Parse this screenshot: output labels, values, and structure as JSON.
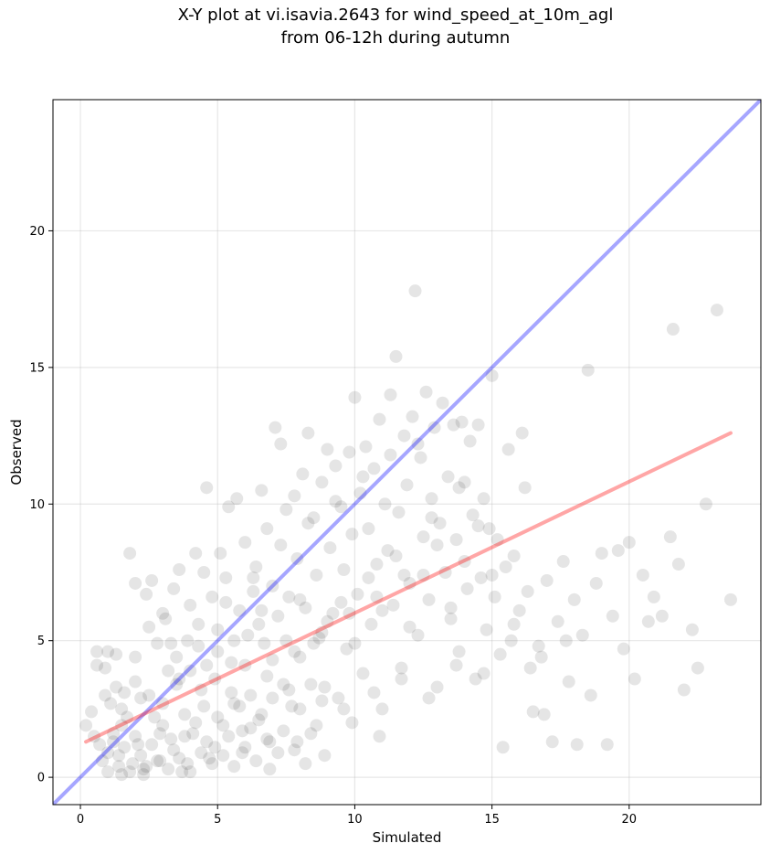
{
  "chart_data": {
    "type": "scatter",
    "title": "X-Y plot at vi.isavia.2643 for wind_speed_at_10m_agl",
    "subtitle": "from 06-12h during autumn",
    "xlabel": "Simulated",
    "ylabel": "Observed",
    "xlim": [
      -1,
      24.8
    ],
    "ylim": [
      -1,
      24.8
    ],
    "xticks": [
      0,
      5,
      10,
      15,
      20
    ],
    "yticks": [
      0,
      5,
      10,
      15,
      20
    ],
    "xtick_labels": [
      "0",
      "5",
      "10",
      "15",
      "20"
    ],
    "ytick_labels": [
      "0",
      "5",
      "10",
      "15",
      "20"
    ],
    "grid": true,
    "point_color": "#000000",
    "point_alpha": 0.1,
    "identity_line": {
      "x": [
        -1,
        24.8
      ],
      "y": [
        -1,
        24.8
      ],
      "color": "#0000ff",
      "alpha": 0.35
    },
    "regression_line": {
      "x": [
        0.2,
        23.7
      ],
      "y": [
        1.3,
        12.6
      ],
      "color": "#ff0000",
      "alpha": 0.35
    },
    "series": [
      {
        "points": [
          [
            0.2,
            1.9
          ],
          [
            0.4,
            2.4
          ],
          [
            0.5,
            1.5
          ],
          [
            0.6,
            4.1
          ],
          [
            0.6,
            4.6
          ],
          [
            0.7,
            1.2
          ],
          [
            0.8,
            0.6
          ],
          [
            0.9,
            3.0
          ],
          [
            0.9,
            4.0
          ],
          [
            1.0,
            4.6
          ],
          [
            1.0,
            0.2
          ],
          [
            1.1,
            2.7
          ],
          [
            1.2,
            1.6
          ],
          [
            1.3,
            3.3
          ],
          [
            1.3,
            4.5
          ],
          [
            1.4,
            0.8
          ],
          [
            1.5,
            1.9
          ],
          [
            1.5,
            0.1
          ],
          [
            1.6,
            3.1
          ],
          [
            1.7,
            2.2
          ],
          [
            1.8,
            8.2
          ],
          [
            1.9,
            0.5
          ],
          [
            2.0,
            7.1
          ],
          [
            2.0,
            4.4
          ],
          [
            2.1,
            1.2
          ],
          [
            2.2,
            2.9
          ],
          [
            2.3,
            0.3
          ],
          [
            2.4,
            6.7
          ],
          [
            2.5,
            5.5
          ],
          [
            2.6,
            7.2
          ],
          [
            2.7,
            2.2
          ],
          [
            2.8,
            4.9
          ],
          [
            2.9,
            0.6
          ],
          [
            3.0,
            6.0
          ],
          [
            3.1,
            5.8
          ],
          [
            3.2,
            3.9
          ],
          [
            3.3,
            1.4
          ],
          [
            3.4,
            6.9
          ],
          [
            3.5,
            4.4
          ],
          [
            3.6,
            7.6
          ],
          [
            3.7,
            0.2
          ],
          [
            3.8,
            2.3
          ],
          [
            3.9,
            5.0
          ],
          [
            4.0,
            6.3
          ],
          [
            4.1,
            1.6
          ],
          [
            4.2,
            8.2
          ],
          [
            4.3,
            4.8
          ],
          [
            4.4,
            3.2
          ],
          [
            4.5,
            7.5
          ],
          [
            4.6,
            10.6
          ],
          [
            4.7,
            0.7
          ],
          [
            4.8,
            6.6
          ],
          [
            4.9,
            3.6
          ],
          [
            5.0,
            5.4
          ],
          [
            5.1,
            8.2
          ],
          [
            5.2,
            1.9
          ],
          [
            5.3,
            7.3
          ],
          [
            5.4,
            9.9
          ],
          [
            5.5,
            4.2
          ],
          [
            5.6,
            2.7
          ],
          [
            5.7,
            10.2
          ],
          [
            5.8,
            6.1
          ],
          [
            5.9,
            0.9
          ],
          [
            6.0,
            8.6
          ],
          [
            6.1,
            5.2
          ],
          [
            6.2,
            3.0
          ],
          [
            6.3,
            6.8
          ],
          [
            6.4,
            7.7
          ],
          [
            6.5,
            2.1
          ],
          [
            6.6,
            10.5
          ],
          [
            6.7,
            4.9
          ],
          [
            6.8,
            9.1
          ],
          [
            6.9,
            1.3
          ],
          [
            7.0,
            7.0
          ],
          [
            7.1,
            12.8
          ],
          [
            7.2,
            5.9
          ],
          [
            7.3,
            12.2
          ],
          [
            7.4,
            3.4
          ],
          [
            7.5,
            9.8
          ],
          [
            7.6,
            6.6
          ],
          [
            7.7,
            2.6
          ],
          [
            7.8,
            10.3
          ],
          [
            7.9,
            8.0
          ],
          [
            8.0,
            4.4
          ],
          [
            8.1,
            11.1
          ],
          [
            8.2,
            6.2
          ],
          [
            8.3,
            12.6
          ],
          [
            8.4,
            1.6
          ],
          [
            8.5,
            9.5
          ],
          [
            8.6,
            7.4
          ],
          [
            8.7,
            5.1
          ],
          [
            8.8,
            10.8
          ],
          [
            8.9,
            3.3
          ],
          [
            9.0,
            12.0
          ],
          [
            9.1,
            8.4
          ],
          [
            9.2,
            6.0
          ],
          [
            9.3,
            11.4
          ],
          [
            9.4,
            2.9
          ],
          [
            9.5,
            9.9
          ],
          [
            9.6,
            7.6
          ],
          [
            9.7,
            4.7
          ],
          [
            9.8,
            11.9
          ],
          [
            9.9,
            8.9
          ],
          [
            10.0,
            13.9
          ],
          [
            10.1,
            6.7
          ],
          [
            10.2,
            10.4
          ],
          [
            10.3,
            3.8
          ],
          [
            10.4,
            12.1
          ],
          [
            10.5,
            9.1
          ],
          [
            10.6,
            5.6
          ],
          [
            10.7,
            11.3
          ],
          [
            10.8,
            7.8
          ],
          [
            10.9,
            13.1
          ],
          [
            11.0,
            2.5
          ],
          [
            11.1,
            10.0
          ],
          [
            11.2,
            8.3
          ],
          [
            11.3,
            14.0
          ],
          [
            11.4,
            6.3
          ],
          [
            11.5,
            15.4
          ],
          [
            11.6,
            9.7
          ],
          [
            11.7,
            4.0
          ],
          [
            11.8,
            12.5
          ],
          [
            11.9,
            10.7
          ],
          [
            12.0,
            7.1
          ],
          [
            12.1,
            13.2
          ],
          [
            12.2,
            17.8
          ],
          [
            12.3,
            5.2
          ],
          [
            12.4,
            11.7
          ],
          [
            12.5,
            8.8
          ],
          [
            12.6,
            14.1
          ],
          [
            12.7,
            6.5
          ],
          [
            12.8,
            10.2
          ],
          [
            12.9,
            12.8
          ],
          [
            13.0,
            3.3
          ],
          [
            13.1,
            9.3
          ],
          [
            13.2,
            13.7
          ],
          [
            13.3,
            7.5
          ],
          [
            13.4,
            11.0
          ],
          [
            13.5,
            5.8
          ],
          [
            13.6,
            12.9
          ],
          [
            13.7,
            8.7
          ],
          [
            13.8,
            4.6
          ],
          [
            13.9,
            13.0
          ],
          [
            14.0,
            10.8
          ],
          [
            14.1,
            6.9
          ],
          [
            14.2,
            12.3
          ],
          [
            14.3,
            9.6
          ],
          [
            14.4,
            3.6
          ],
          [
            14.5,
            12.9
          ],
          [
            14.6,
            7.3
          ],
          [
            14.7,
            10.2
          ],
          [
            14.8,
            5.4
          ],
          [
            14.9,
            9.1
          ],
          [
            15.0,
            14.7
          ],
          [
            15.1,
            6.6
          ],
          [
            15.2,
            8.7
          ],
          [
            15.3,
            4.5
          ],
          [
            15.4,
            1.1
          ],
          [
            15.5,
            7.7
          ],
          [
            15.6,
            12.0
          ],
          [
            15.7,
            5.0
          ],
          [
            15.8,
            8.1
          ],
          [
            16.0,
            6.1
          ],
          [
            16.1,
            12.6
          ],
          [
            16.2,
            10.6
          ],
          [
            16.4,
            4.0
          ],
          [
            16.5,
            2.4
          ],
          [
            16.7,
            4.8
          ],
          [
            16.9,
            2.3
          ],
          [
            17.0,
            7.2
          ],
          [
            17.2,
            1.3
          ],
          [
            17.4,
            5.7
          ],
          [
            17.6,
            7.9
          ],
          [
            17.8,
            3.5
          ],
          [
            18.0,
            6.5
          ],
          [
            18.1,
            1.2
          ],
          [
            18.3,
            5.2
          ],
          [
            18.5,
            14.9
          ],
          [
            18.6,
            3.0
          ],
          [
            18.8,
            7.1
          ],
          [
            19.0,
            8.2
          ],
          [
            19.2,
            1.2
          ],
          [
            19.4,
            5.9
          ],
          [
            19.6,
            8.3
          ],
          [
            19.8,
            4.7
          ],
          [
            20.0,
            8.6
          ],
          [
            20.2,
            3.6
          ],
          [
            20.5,
            7.4
          ],
          [
            20.7,
            5.7
          ],
          [
            20.9,
            6.6
          ],
          [
            21.2,
            5.9
          ],
          [
            21.5,
            8.8
          ],
          [
            21.6,
            16.4
          ],
          [
            21.8,
            7.8
          ],
          [
            22.0,
            3.2
          ],
          [
            22.3,
            5.4
          ],
          [
            22.5,
            4.0
          ],
          [
            22.8,
            10.0
          ],
          [
            23.2,
            17.1
          ],
          [
            23.7,
            6.5
          ],
          [
            1.0,
            0.9
          ],
          [
            1.2,
            1.3
          ],
          [
            1.4,
            0.4
          ],
          [
            1.6,
            1.1
          ],
          [
            1.8,
            0.2
          ],
          [
            2.0,
            1.5
          ],
          [
            2.2,
            0.8
          ],
          [
            2.4,
            0.4
          ],
          [
            2.6,
            1.2
          ],
          [
            2.8,
            0.6
          ],
          [
            3.0,
            1.9
          ],
          [
            3.2,
            0.3
          ],
          [
            3.4,
            1.0
          ],
          [
            3.6,
            0.7
          ],
          [
            3.8,
            1.5
          ],
          [
            4.0,
            0.2
          ],
          [
            4.2,
            2.0
          ],
          [
            4.4,
            0.9
          ],
          [
            4.6,
            1.3
          ],
          [
            4.8,
            0.5
          ],
          [
            5.0,
            2.2
          ],
          [
            5.2,
            0.8
          ],
          [
            5.4,
            1.5
          ],
          [
            5.6,
            0.4
          ],
          [
            5.8,
            2.6
          ],
          [
            6.0,
            1.1
          ],
          [
            6.2,
            1.8
          ],
          [
            6.4,
            0.6
          ],
          [
            6.6,
            2.3
          ],
          [
            6.8,
            1.4
          ],
          [
            7.0,
            2.9
          ],
          [
            7.2,
            0.9
          ],
          [
            7.4,
            1.7
          ],
          [
            7.6,
            3.2
          ],
          [
            7.8,
            1.0
          ],
          [
            8.0,
            2.5
          ],
          [
            8.2,
            0.5
          ],
          [
            8.4,
            3.4
          ],
          [
            8.6,
            1.9
          ],
          [
            8.8,
            2.8
          ],
          [
            1.5,
            2.5
          ],
          [
            2.0,
            3.5
          ],
          [
            2.5,
            3.0
          ],
          [
            3.0,
            2.7
          ],
          [
            3.5,
            3.4
          ],
          [
            4.0,
            3.9
          ],
          [
            4.5,
            2.6
          ],
          [
            5.0,
            4.6
          ],
          [
            5.5,
            3.1
          ],
          [
            6.0,
            4.1
          ],
          [
            6.5,
            5.6
          ],
          [
            7.0,
            4.3
          ],
          [
            7.5,
            5.0
          ],
          [
            8.0,
            6.5
          ],
          [
            8.5,
            4.9
          ],
          [
            9.0,
            5.7
          ],
          [
            9.5,
            6.4
          ],
          [
            10.0,
            4.9
          ],
          [
            10.5,
            7.3
          ],
          [
            11.0,
            6.1
          ],
          [
            11.5,
            8.1
          ],
          [
            12.0,
            5.5
          ],
          [
            12.5,
            7.4
          ],
          [
            13.0,
            8.5
          ],
          [
            13.5,
            6.2
          ],
          [
            14.0,
            7.9
          ],
          [
            14.5,
            9.2
          ],
          [
            15.0,
            7.4
          ],
          [
            3.3,
            4.9
          ],
          [
            4.3,
            5.6
          ],
          [
            5.3,
            6.4
          ],
          [
            6.3,
            7.3
          ],
          [
            7.3,
            8.5
          ],
          [
            8.3,
            9.3
          ],
          [
            9.3,
            10.1
          ],
          [
            10.3,
            11.0
          ],
          [
            11.3,
            11.8
          ],
          [
            12.3,
            12.2
          ],
          [
            6.8,
            3.7
          ],
          [
            7.8,
            4.6
          ],
          [
            8.8,
            5.3
          ],
          [
            9.8,
            6.0
          ],
          [
            10.8,
            6.6
          ],
          [
            11.8,
            7.4
          ],
          [
            12.8,
            9.5
          ],
          [
            13.8,
            10.6
          ],
          [
            9.6,
            2.5
          ],
          [
            10.7,
            3.1
          ],
          [
            11.7,
            3.6
          ],
          [
            12.7,
            2.9
          ],
          [
            13.7,
            4.1
          ],
          [
            14.7,
            3.8
          ],
          [
            15.8,
            5.6
          ],
          [
            16.3,
            6.8
          ],
          [
            16.8,
            4.4
          ],
          [
            17.7,
            5.0
          ],
          [
            3.6,
            3.6
          ],
          [
            4.6,
            4.1
          ],
          [
            5.6,
            5.0
          ],
          [
            6.6,
            6.1
          ],
          [
            2.3,
            0.1
          ],
          [
            2.9,
            1.6
          ],
          [
            3.9,
            0.5
          ],
          [
            4.9,
            1.1
          ],
          [
            5.9,
            1.7
          ],
          [
            6.9,
            0.3
          ],
          [
            7.9,
            1.3
          ],
          [
            8.9,
            0.8
          ],
          [
            9.9,
            2.0
          ],
          [
            10.9,
            1.5
          ]
        ]
      }
    ]
  }
}
